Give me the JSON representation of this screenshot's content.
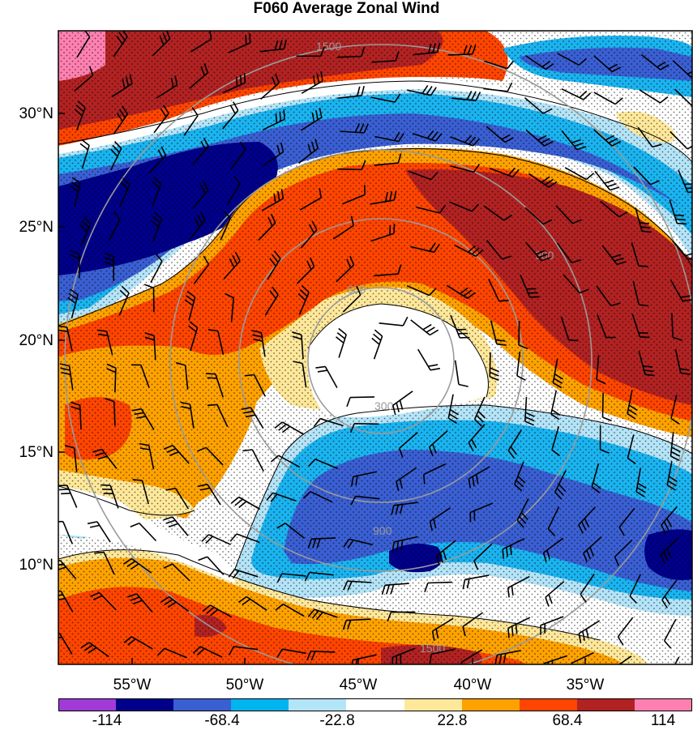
{
  "title": "F060 Average Zonal Wind",
  "latitude_labels": [
    "30°N",
    "25°N",
    "20°N",
    "15°N",
    "10°N"
  ],
  "longitude_labels": [
    "55°W",
    "50°W",
    "45°W",
    "40°W",
    "35°W"
  ],
  "range_ring_labels": [
    "300",
    "600",
    "900",
    "1500"
  ],
  "colorbar": {
    "labels": [
      "-114",
      "-68.4",
      "-22.8",
      "22.8",
      "68.4",
      "114"
    ],
    "colors": [
      "#a03ad8",
      "#00008b",
      "#3a5fd3",
      "#00b4f0",
      "#b4e4f8",
      "#ffffff",
      "#ffe89a",
      "#ffa200",
      "#ff4500",
      "#b22222",
      "#ff80b0"
    ]
  },
  "palette": {
    "deep_blue": "#00008b",
    "blue": "#3a5fd3",
    "cyan": "#1ab4f0",
    "light_blue": "#b4e4f8",
    "white": "#ffffff",
    "light_yellow": "#ffe89a",
    "orange": "#ffa200",
    "red_orange": "#ff4500",
    "dark_red": "#b22222",
    "pink": "#ff80b0"
  }
}
